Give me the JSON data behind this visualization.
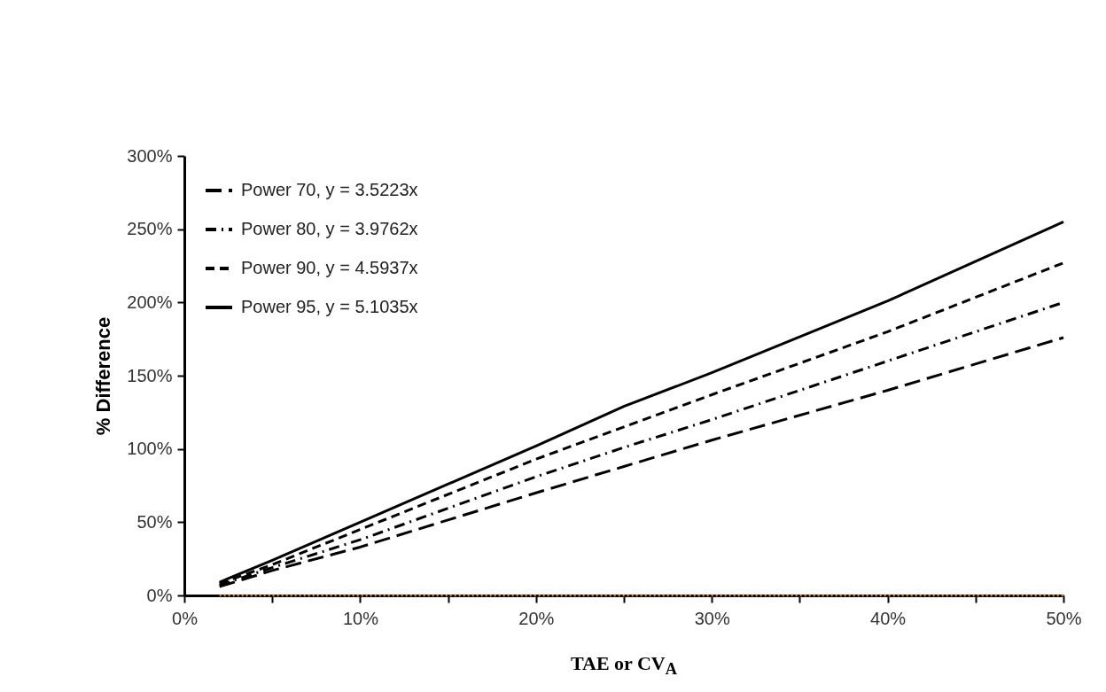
{
  "chart_data": {
    "type": "line",
    "xlabel": "TAE or CV$_{A}$",
    "ylabel": "% Difference",
    "x": [
      2,
      5,
      10,
      20,
      25,
      30,
      40,
      50
    ],
    "series": [
      {
        "name": "Power 70, y = 3.5223x",
        "color": "#000000",
        "line_style": "longdash",
        "values": [
          6,
          17,
          33,
          70,
          88,
          106,
          140,
          176
        ]
      },
      {
        "name": "Power 80, y = 3.9762x",
        "color": "#000000",
        "line_style": "dashdot",
        "values": [
          7,
          19,
          38,
          81,
          101,
          120,
          160,
          200
        ]
      },
      {
        "name": "Power 90, y = 4.5937x",
        "color": "#000000",
        "line_style": "dashed",
        "values": [
          8,
          21,
          45,
          93,
          115,
          137,
          180,
          227
        ]
      },
      {
        "name": "Power 95, y = 5.1035x",
        "color": "#000000",
        "line_style": "solid",
        "values": [
          9,
          24,
          50,
          102,
          129,
          152,
          201,
          255
        ]
      },
      {
        "color": "#ed7d31",
        "line_style": "dotted",
        "values": [
          0,
          0,
          0,
          0,
          0,
          0,
          0,
          0
        ]
      }
    ],
    "xlim": [
      0,
      50
    ],
    "ylim": [
      0,
      300
    ],
    "xticks": [
      {
        "value": 0,
        "label": "0%"
      },
      {
        "value": 5,
        "label": null
      },
      {
        "value": 10,
        "label": "10%"
      },
      {
        "value": 15,
        "label": null
      },
      {
        "value": 20,
        "label": "20%"
      },
      {
        "value": 25,
        "label": null
      },
      {
        "value": 30,
        "label": "30%"
      },
      {
        "value": 35,
        "label": null
      },
      {
        "value": 40,
        "label": "40%"
      },
      {
        "value": 45,
        "label": null
      },
      {
        "value": 50,
        "label": "50%"
      }
    ],
    "yticks": [
      {
        "value": 0,
        "label": "0%"
      },
      {
        "value": 50,
        "label": "50%"
      },
      {
        "value": 100,
        "label": "100%"
      },
      {
        "value": 150,
        "label": "150%"
      },
      {
        "value": 200,
        "label": "200%"
      },
      {
        "value": 250,
        "label": "250%"
      },
      {
        "value": 300,
        "label": "300%"
      }
    ],
    "grid": false,
    "legend": "top left"
  }
}
